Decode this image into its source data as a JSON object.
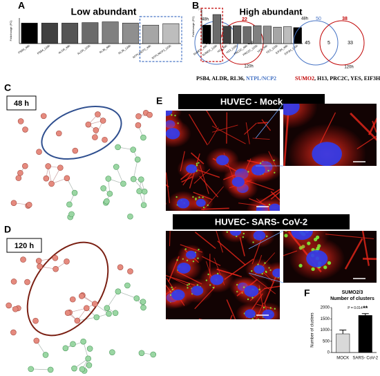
{
  "panel_labels": [
    "A",
    "B",
    "C",
    "D",
    "E",
    "F"
  ],
  "network_labels": [
    "48 h",
    "120 h"
  ],
  "image_titles": [
    "HUVEC - Mock",
    "HUVEC- SARS- CoV-2"
  ],
  "chart_data": [
    {
      "type": "bar",
      "title": "Low abundant",
      "ylabel": "Foldchange (FC)",
      "categories": [
        "PSB4_48h",
        "PSB4_120h",
        "ALDR_48h",
        "ALDR_120h",
        "RL36_48h",
        "RL36_120h",
        "NTPL/NCP2_48h",
        "NTPL/NCP2_120h"
      ],
      "values": [
        0.8,
        0.8,
        0.8,
        0.82,
        0.85,
        0.8,
        0.72,
        0.78
      ],
      "colors": [
        "#000000",
        "#404040",
        "#555555",
        "#6b6b6b",
        "#808080",
        "#8f8f8f",
        "#a6a6a6",
        "#bdbdbd"
      ],
      "ylim": [
        0,
        1
      ],
      "highlight": [
        6,
        7
      ],
      "highlight_color": "#4472c4"
    },
    {
      "type": "venn",
      "sets": [
        {
          "name": "48h",
          "count": 39,
          "color": "#4472c4"
        },
        {
          "name": "120h",
          "count": 22,
          "color": "#c00000"
        }
      ],
      "regions": [
        35,
        4,
        18
      ],
      "caption": [
        {
          "text": "PSB4, ALDR, RL36, ",
          "color": "#000000"
        },
        {
          "text": "NTPL/NCP2",
          "color": "#4472c4"
        }
      ]
    },
    {
      "type": "bar",
      "title": "High abundant",
      "ylabel": "Foldchange (FC)",
      "categories": [
        "SUMO2_48h",
        "SUMO2_120h",
        "H13_48h",
        "H13_120h",
        "PRC2C_48h",
        "PRC2C_120h",
        "YES_48h",
        "YES_120h",
        "EIF3H_48h",
        "EIF3H_120h"
      ],
      "values": [
        3.8,
        6,
        3.6,
        3.7,
        3.5,
        3.7,
        3.6,
        3.4,
        3.5,
        3.3
      ],
      "colors": [
        "#000000",
        "#6b6b6b",
        "#404040",
        "#555555",
        "#6b6b6b",
        "#808080",
        "#8f8f8f",
        "#a6a6a6",
        "#bdbdbd",
        "#000000"
      ],
      "ylim": [
        0,
        7
      ],
      "yticks": [
        7
      ],
      "highlight": [
        0,
        1
      ],
      "highlight_color": "#c00000"
    },
    {
      "type": "venn",
      "sets": [
        {
          "name": "48h",
          "count": 50,
          "color": "#4472c4"
        },
        {
          "name": "120h",
          "count": 38,
          "color": "#c00000"
        }
      ],
      "regions": [
        45,
        5,
        33
      ],
      "caption": [
        {
          "text": "SUMO2",
          "color": "#c00000"
        },
        {
          "text": ", H13, PRC2C, YES, EIF3H",
          "color": "#000000"
        }
      ]
    },
    {
      "type": "bar",
      "title": [
        "SUMO2/3",
        "Number of clusters"
      ],
      "ylabel": "Number of clusters",
      "categories": [
        "MOCK",
        "SARS- CoV-2"
      ],
      "values": [
        830,
        1650
      ],
      "errors": [
        170,
        80
      ],
      "colors": [
        "#d9d9d9",
        "#000000"
      ],
      "ylim": [
        0,
        2000
      ],
      "yticks": [
        0,
        500,
        1000,
        1500,
        2000
      ],
      "annotations": [
        "P = 0.014",
        "**"
      ]
    }
  ]
}
